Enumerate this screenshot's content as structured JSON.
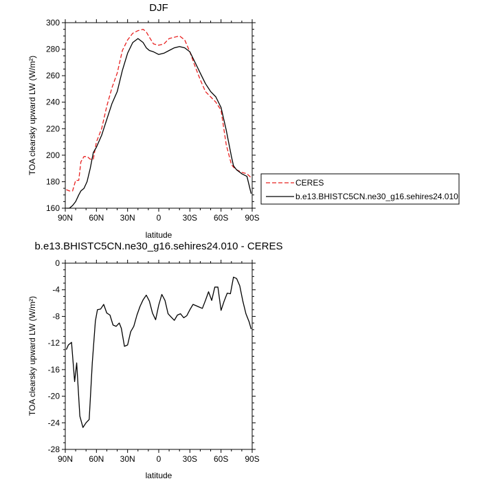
{
  "colors": {
    "ceres": "#e8201f",
    "model": "#000000",
    "axis": "#000000",
    "background": "#ffffff"
  },
  "chart_data": [
    {
      "type": "line",
      "title": "DJF",
      "xlabel": "latitude",
      "ylabel": "TOA clearsky upward LW (W/m²)",
      "x_tick_labels": [
        "90N",
        "60N",
        "30N",
        "0",
        "30S",
        "60S",
        "90S"
      ],
      "y_tick_labels": [
        "160",
        "180",
        "200",
        "220",
        "240",
        "260",
        "280",
        "300"
      ],
      "xlim": [
        90,
        -90
      ],
      "ylim": [
        160,
        300
      ],
      "grid": false,
      "legend_position": "right",
      "series": [
        {
          "name": "CERES",
          "style": "dashed",
          "color": "#e8201f",
          "x": [
            89,
            86,
            83,
            80,
            77,
            75,
            72,
            69,
            66,
            63,
            60,
            55,
            50,
            45,
            40,
            35,
            30,
            25,
            20,
            15,
            12,
            9,
            5,
            0,
            -5,
            -10,
            -15,
            -20,
            -25,
            -30,
            -35,
            -40,
            -45,
            -50,
            -55,
            -60,
            -65,
            -70,
            -72,
            -75,
            -80,
            -85,
            -89
          ],
          "y": [
            174,
            173,
            173,
            181,
            181,
            195,
            199,
            199,
            197,
            197,
            210,
            220,
            237,
            251,
            262,
            279,
            287,
            292,
            294,
            295,
            293,
            289,
            284,
            283,
            284,
            288,
            289,
            290,
            287,
            278,
            267,
            257,
            248,
            244,
            240,
            234,
            208,
            193,
            191,
            189,
            187,
            186,
            183
          ]
        },
        {
          "name": "b.e13.BHISTC5CN.ne30_g16.sehires24.010",
          "style": "solid",
          "color": "#000000",
          "x": [
            89,
            86,
            83,
            80,
            77,
            75,
            72,
            69,
            66,
            63,
            60,
            55,
            50,
            45,
            40,
            35,
            30,
            25,
            20,
            15,
            12,
            9,
            5,
            0,
            -5,
            -10,
            -15,
            -20,
            -25,
            -30,
            -35,
            -40,
            -45,
            -50,
            -55,
            -60,
            -65,
            -70,
            -72,
            -75,
            -80,
            -85,
            -89
          ],
          "y": [
            160,
            160,
            162,
            165,
            170,
            173,
            175,
            180,
            190,
            202,
            206,
            215,
            227,
            239,
            248,
            264,
            277,
            285,
            288,
            285,
            281,
            279,
            278,
            276,
            277,
            279,
            281,
            282,
            281,
            278,
            270,
            262,
            254,
            248,
            244,
            236,
            219,
            199,
            192,
            189,
            186,
            184,
            171
          ]
        }
      ]
    },
    {
      "type": "line",
      "title": "b.e13.BHISTC5CN.ne30_g16.sehires24.010 - CERES",
      "xlabel": "latitude",
      "ylabel": "TOA clearsky upward LW (W/m²)",
      "x_tick_labels": [
        "90N",
        "60N",
        "30N",
        "0",
        "30S",
        "60S",
        "90S"
      ],
      "y_tick_labels": [
        "0",
        "-4",
        "-8",
        "-12",
        "-16",
        "-20",
        "-24",
        "-28"
      ],
      "xlim": [
        90,
        -90
      ],
      "ylim": [
        -28,
        0
      ],
      "grid": false,
      "series": [
        {
          "name": "b.e13.BHISTC5CN.ne30_g16.sehires24.010 - CERES",
          "style": "solid",
          "color": "#000000",
          "x": [
            89,
            87,
            84,
            81,
            79,
            76,
            73,
            70,
            67,
            64,
            61,
            59,
            56,
            53,
            50,
            47,
            44,
            41,
            38,
            36,
            33,
            30,
            27,
            24,
            21,
            18,
            15,
            12,
            9,
            6,
            3,
            0,
            -3,
            -6,
            -9,
            -12,
            -15,
            -18,
            -21,
            -24,
            -27,
            -30,
            -33,
            -36,
            -39,
            -42,
            -45,
            -48,
            -51,
            -54,
            -57,
            -60,
            -63,
            -66,
            -69,
            -72,
            -75,
            -78,
            -81,
            -84,
            -87,
            -89
          ],
          "y": [
            -13,
            -12.3,
            -11.9,
            -17.8,
            -15,
            -23,
            -24.7,
            -24,
            -23.5,
            -15,
            -8.7,
            -7,
            -6.9,
            -6.2,
            -7.5,
            -7.8,
            -9.3,
            -9.5,
            -9,
            -9.8,
            -12.5,
            -12.3,
            -10.3,
            -9.5,
            -7.8,
            -6.5,
            -5.5,
            -4.8,
            -5.7,
            -7.5,
            -8.5,
            -6.3,
            -4.7,
            -5.6,
            -7.6,
            -8.1,
            -8.6,
            -7.8,
            -7.6,
            -8.2,
            -7.9,
            -7,
            -6.2,
            -6.4,
            -6.6,
            -6.8,
            -5.6,
            -4.3,
            -5.6,
            -3.6,
            -3.6,
            -7.1,
            -5.7,
            -4.5,
            -4.6,
            -2.1,
            -2.3,
            -3.4,
            -5.7,
            -7.6,
            -8.8,
            -9.9
          ]
        }
      ]
    }
  ]
}
